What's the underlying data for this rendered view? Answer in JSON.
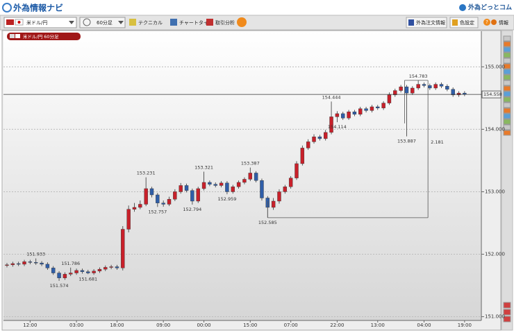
{
  "header": {
    "title": "外為情報ナビ",
    "brand": "外為どっとコム"
  },
  "toolbar": {
    "pair": "米ドル/円",
    "timeframe": "60分足",
    "buttons": [
      "テクニカル",
      "チャートタイプ",
      "取引分析"
    ],
    "right_buttons": [
      "外為注文情報",
      "色設定"
    ],
    "help": "?",
    "info": "情報"
  },
  "chart_data": {
    "type": "candlestick",
    "legend": "米ドル/円 60分足",
    "categories": [
      null,
      null,
      null,
      null,
      "12:00",
      null,
      null,
      null,
      null,
      null,
      null,
      null,
      "03:00",
      null,
      null,
      null,
      null,
      null,
      null,
      "18:00",
      null,
      null,
      null,
      null,
      null,
      null,
      null,
      "09:00",
      null,
      null,
      null,
      null,
      null,
      null,
      "00:00",
      null,
      null,
      null,
      null,
      null,
      null,
      null,
      "15:00",
      null,
      null,
      null,
      null,
      null,
      null,
      "07:00",
      null,
      null,
      null,
      null,
      null,
      null,
      null,
      "22:00",
      null,
      null,
      null,
      null,
      null,
      null,
      "13:00",
      null,
      null,
      null,
      null,
      null,
      null,
      null,
      "04:00",
      null,
      null,
      null,
      null,
      null,
      null,
      "19:00"
    ],
    "open": [
      151.82,
      151.83,
      151.85,
      151.84,
      151.88,
      151.87,
      151.86,
      151.84,
      151.78,
      151.7,
      151.62,
      151.68,
      151.7,
      151.74,
      151.72,
      151.7,
      151.73,
      151.76,
      151.79,
      151.8,
      151.78,
      152.4,
      152.72,
      152.75,
      152.8,
      153.05,
      152.95,
      152.82,
      152.8,
      152.88,
      153.0,
      153.1,
      153.02,
      152.85,
      153.05,
      153.15,
      153.12,
      153.1,
      153.14,
      153.0,
      153.08,
      153.15,
      153.2,
      153.3,
      153.18,
      152.9,
      152.75,
      152.85,
      153.0,
      153.08,
      153.22,
      153.45,
      153.7,
      153.8,
      153.88,
      153.85,
      153.95,
      154.2,
      154.25,
      154.18,
      154.28,
      154.24,
      154.33,
      154.3,
      154.36,
      154.34,
      154.42,
      154.55,
      154.62,
      154.68,
      154.58,
      154.66,
      154.72,
      154.7,
      154.66,
      154.72,
      154.69,
      154.64,
      154.55,
      154.58
    ],
    "high": [
      151.86,
      151.88,
      151.88,
      151.91,
      151.91,
      151.933,
      151.89,
      151.87,
      151.81,
      151.73,
      151.71,
      151.786,
      151.77,
      151.77,
      151.75,
      151.76,
      151.79,
      151.82,
      151.83,
      151.83,
      152.45,
      152.78,
      152.82,
      152.86,
      153.231,
      153.08,
      152.98,
      152.86,
      152.92,
      153.04,
      153.14,
      153.13,
      153.05,
      153.08,
      153.321,
      153.18,
      153.15,
      153.17,
      153.17,
      153.11,
      153.18,
      153.23,
      153.387,
      153.33,
      153.21,
      152.93,
      152.9,
      153.04,
      153.11,
      153.25,
      153.49,
      153.74,
      153.84,
      153.92,
      153.91,
      153.99,
      154.444,
      154.29,
      154.28,
      154.31,
      154.31,
      154.36,
      154.36,
      154.39,
      154.39,
      154.45,
      154.59,
      154.65,
      154.71,
      154.71,
      154.69,
      154.783,
      154.75,
      154.73,
      154.75,
      154.75,
      154.72,
      154.67,
      154.61,
      154.61
    ],
    "low": [
      151.79,
      151.8,
      151.81,
      151.81,
      151.84,
      151.83,
      151.81,
      151.75,
      151.67,
      151.574,
      151.59,
      151.65,
      151.67,
      151.69,
      151.681,
      151.67,
      151.7,
      151.73,
      151.76,
      151.75,
      151.74,
      152.35,
      152.68,
      152.72,
      152.77,
      152.91,
      152.757,
      152.76,
      152.77,
      152.85,
      152.97,
      152.99,
      152.794,
      152.82,
      153.02,
      153.09,
      153.07,
      153.07,
      152.959,
      152.97,
      153.05,
      153.12,
      153.17,
      153.15,
      152.86,
      152.585,
      152.71,
      152.81,
      152.97,
      153.05,
      153.19,
      153.42,
      153.67,
      153.77,
      153.82,
      153.82,
      153.92,
      154.114,
      154.15,
      154.15,
      154.21,
      154.21,
      154.27,
      154.27,
      154.31,
      154.31,
      154.39,
      154.52,
      154.59,
      153.887,
      154.55,
      154.63,
      154.67,
      154.63,
      154.63,
      154.66,
      154.61,
      154.52,
      154.52,
      154.53
    ],
    "close": [
      151.83,
      151.85,
      151.84,
      151.88,
      151.87,
      151.86,
      151.84,
      151.78,
      151.7,
      151.62,
      151.68,
      151.7,
      151.74,
      151.72,
      151.7,
      151.73,
      151.76,
      151.79,
      151.8,
      151.78,
      152.4,
      152.72,
      152.75,
      152.8,
      153.05,
      152.95,
      152.82,
      152.8,
      152.88,
      153.0,
      153.1,
      153.02,
      152.85,
      153.05,
      153.15,
      153.12,
      153.1,
      153.14,
      153.0,
      153.08,
      153.15,
      153.2,
      153.3,
      153.18,
      152.9,
      152.75,
      152.85,
      153.0,
      153.08,
      153.22,
      153.45,
      153.7,
      153.8,
      153.88,
      153.85,
      153.95,
      154.2,
      154.25,
      154.18,
      154.28,
      154.24,
      154.33,
      154.3,
      154.36,
      154.34,
      154.42,
      154.55,
      154.62,
      154.68,
      154.58,
      154.66,
      154.72,
      154.7,
      154.66,
      154.72,
      154.69,
      154.64,
      154.55,
      154.58,
      154.558
    ],
    "high_labels": [
      null,
      null,
      null,
      null,
      null,
      "151.933",
      null,
      null,
      null,
      null,
      null,
      "151.786",
      null,
      null,
      null,
      null,
      null,
      null,
      null,
      null,
      null,
      null,
      null,
      null,
      "153.231",
      null,
      null,
      null,
      null,
      null,
      null,
      null,
      null,
      null,
      "153.321",
      null,
      null,
      null,
      null,
      null,
      null,
      null,
      "153.387",
      null,
      null,
      null,
      null,
      null,
      null,
      null,
      null,
      null,
      null,
      null,
      null,
      null,
      "154.444",
      null,
      null,
      null,
      null,
      null,
      null,
      null,
      null,
      null,
      null,
      null,
      null,
      null,
      null,
      "154.783",
      null,
      null,
      null,
      null,
      null,
      null,
      null,
      null
    ],
    "low_labels": [
      null,
      null,
      null,
      null,
      null,
      null,
      null,
      null,
      null,
      "151.574",
      null,
      null,
      null,
      null,
      "151.681",
      null,
      null,
      null,
      null,
      null,
      null,
      null,
      null,
      null,
      null,
      null,
      "152.757",
      null,
      null,
      null,
      null,
      null,
      "152.794",
      null,
      null,
      null,
      null,
      null,
      "152.959",
      null,
      null,
      null,
      null,
      null,
      null,
      "152.585",
      null,
      null,
      null,
      null,
      null,
      null,
      null,
      null,
      null,
      null,
      null,
      "154.114",
      null,
      null,
      null,
      null,
      null,
      null,
      null,
      null,
      null,
      null,
      null,
      "153.887",
      null,
      null,
      null,
      null,
      null,
      null,
      null,
      null,
      null,
      null
    ],
    "range": 2.181,
    "ylim": [
      150.94,
      155.57
    ],
    "yticks": [
      {
        "value": 151,
        "label": "151.000"
      },
      {
        "value": 152,
        "label": "152.000"
      },
      {
        "value": 153,
        "label": "153.000"
      },
      {
        "value": 154,
        "label": "154.000"
      },
      {
        "value": 155,
        "label": "155.000"
      }
    ],
    "grid": true,
    "up_color": "#c8202a",
    "down_color": "#2f5ea8"
  }
}
